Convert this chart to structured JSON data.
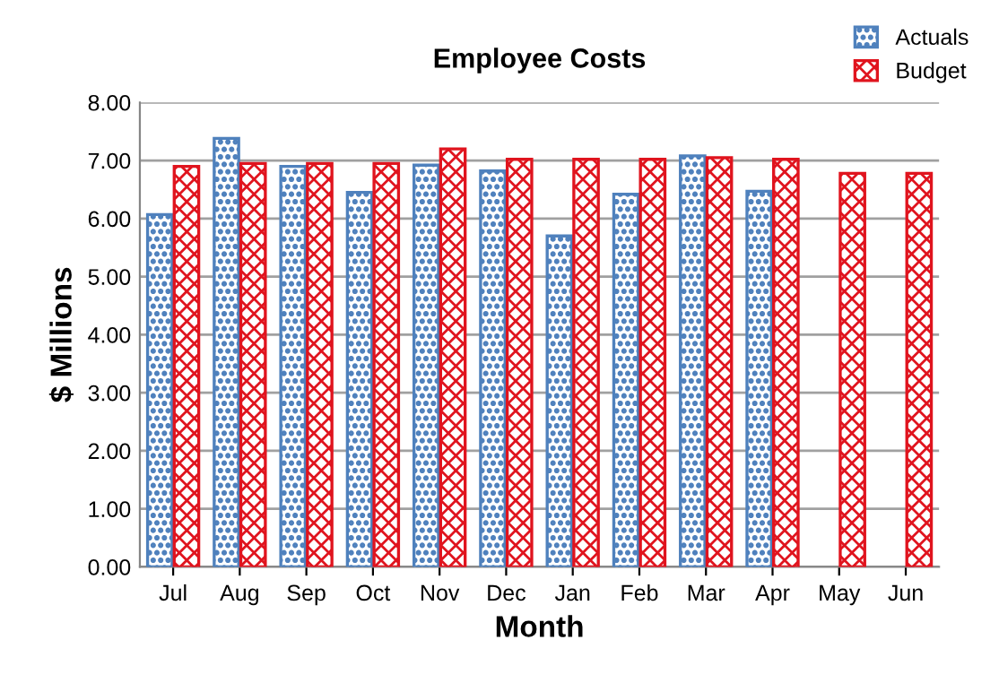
{
  "chart_data": {
    "type": "bar",
    "title": "Employee Costs",
    "xlabel": "Month",
    "ylabel": "$ Millions",
    "categories": [
      "Jul",
      "Aug",
      "Sep",
      "Oct",
      "Nov",
      "Dec",
      "Jan",
      "Feb",
      "Mar",
      "Apr",
      "May",
      "Jun"
    ],
    "series": [
      {
        "name": "Actuals",
        "color": "#4f81bd",
        "values": [
          6.07,
          7.38,
          6.9,
          6.45,
          6.92,
          6.82,
          5.7,
          6.42,
          7.08,
          6.47,
          null,
          null
        ]
      },
      {
        "name": "Budget",
        "color": "#e0141e",
        "values": [
          6.9,
          6.95,
          6.95,
          6.95,
          7.2,
          7.02,
          7.02,
          7.02,
          7.05,
          7.02,
          6.78,
          6.78
        ]
      }
    ],
    "ylim": [
      0,
      8
    ],
    "yticks": [
      {
        "value": 0,
        "label": "0.00"
      },
      {
        "value": 1,
        "label": "1.00"
      },
      {
        "value": 2,
        "label": "2.00"
      },
      {
        "value": 3,
        "label": "3.00"
      },
      {
        "value": 4,
        "label": "4.00"
      },
      {
        "value": 5,
        "label": "5.00"
      },
      {
        "value": 6,
        "label": "6.00"
      },
      {
        "value": 7,
        "label": "7.00"
      },
      {
        "value": 8,
        "label": "8.00"
      }
    ],
    "grid": "y",
    "legend": "top right"
  }
}
